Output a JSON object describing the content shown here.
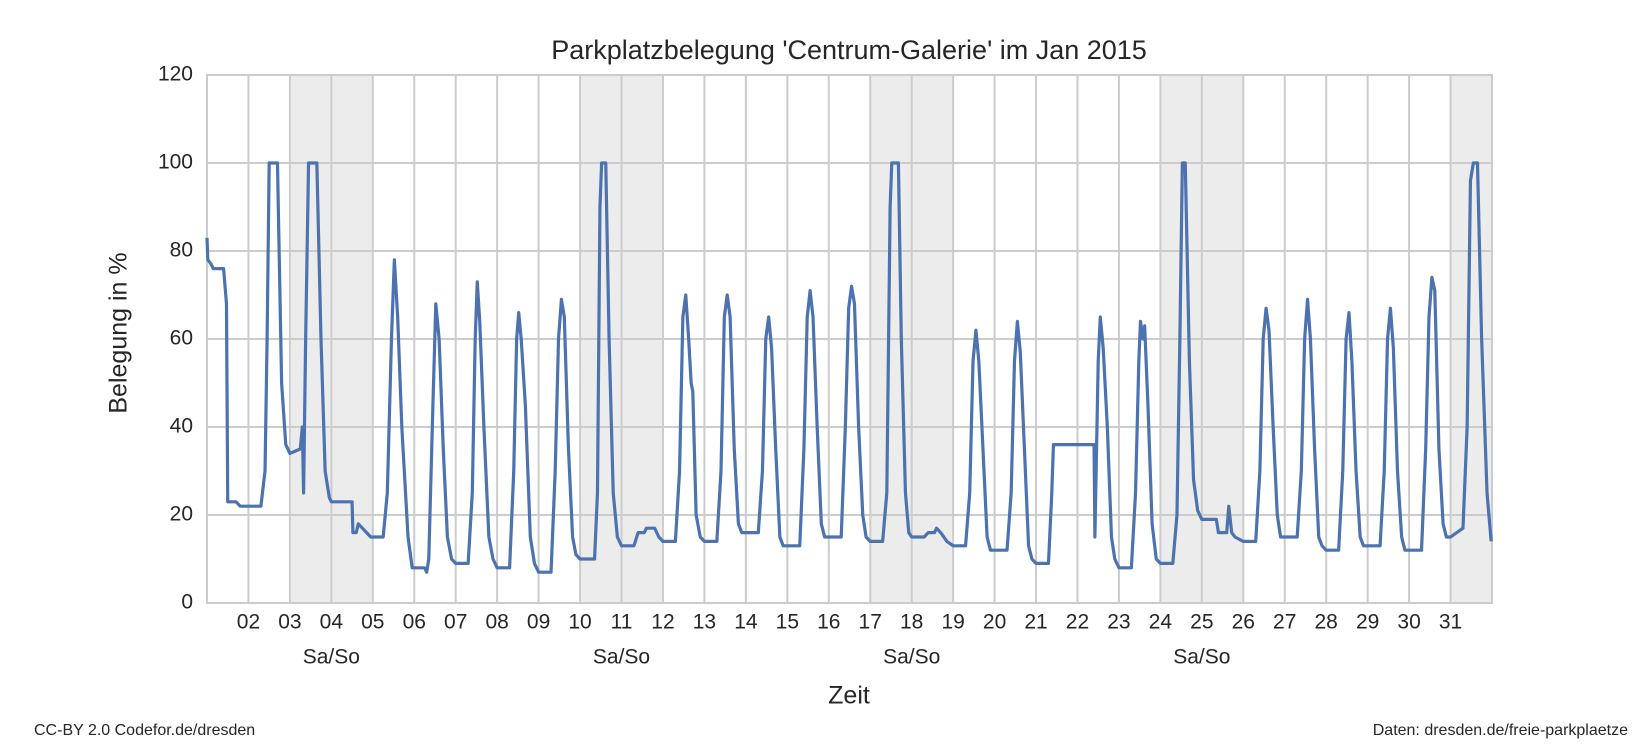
{
  "chart_data": {
    "type": "line",
    "title": "Parkplatzbelegung 'Centrum-Galerie' im Jan 2015",
    "xlabel": "Zeit",
    "ylabel": "Belegung in %",
    "footer_left": "CC-BY 2.0 Codefor.de/dresden",
    "footer_right": "Daten: dresden.de/freie-parkplaetze",
    "color": "#4c72b0",
    "grid": true,
    "xlim": [
      1,
      32
    ],
    "ylim": [
      0,
      120
    ],
    "yticks": [
      0,
      20,
      40,
      60,
      80,
      100,
      120
    ],
    "xticks": [
      {
        "value": 2,
        "label": "02"
      },
      {
        "value": 3,
        "label": "03"
      },
      {
        "value": 4,
        "label": "04"
      },
      {
        "value": 5,
        "label": "05"
      },
      {
        "value": 6,
        "label": "06"
      },
      {
        "value": 7,
        "label": "07"
      },
      {
        "value": 8,
        "label": "08"
      },
      {
        "value": 9,
        "label": "09"
      },
      {
        "value": 10,
        "label": "10"
      },
      {
        "value": 11,
        "label": "11"
      },
      {
        "value": 12,
        "label": "12"
      },
      {
        "value": 13,
        "label": "13"
      },
      {
        "value": 14,
        "label": "14"
      },
      {
        "value": 15,
        "label": "15"
      },
      {
        "value": 16,
        "label": "16"
      },
      {
        "value": 17,
        "label": "17"
      },
      {
        "value": 18,
        "label": "18"
      },
      {
        "value": 19,
        "label": "19"
      },
      {
        "value": 20,
        "label": "20"
      },
      {
        "value": 21,
        "label": "21"
      },
      {
        "value": 22,
        "label": "22"
      },
      {
        "value": 23,
        "label": "23"
      },
      {
        "value": 24,
        "label": "24"
      },
      {
        "value": 25,
        "label": "25"
      },
      {
        "value": 26,
        "label": "26"
      },
      {
        "value": 27,
        "label": "27"
      },
      {
        "value": 28,
        "label": "28"
      },
      {
        "value": 29,
        "label": "29"
      },
      {
        "value": 30,
        "label": "30"
      },
      {
        "value": 31,
        "label": "31"
      }
    ],
    "weekends": [
      {
        "start": 3,
        "end": 5,
        "label": "Sa/So"
      },
      {
        "start": 10,
        "end": 12,
        "label": "Sa/So"
      },
      {
        "start": 17,
        "end": 19,
        "label": "Sa/So"
      },
      {
        "start": 24,
        "end": 26,
        "label": "Sa/So"
      },
      {
        "start": 31,
        "end": 32
      }
    ],
    "x": [
      1.0,
      1.02,
      1.1,
      1.15,
      1.4,
      1.47,
      1.5,
      1.7,
      1.8,
      2.3,
      2.4,
      2.45,
      2.5,
      2.7,
      2.8,
      2.9,
      3.0,
      3.25,
      3.3,
      3.33,
      3.38,
      3.45,
      3.65,
      3.75,
      3.85,
      3.95,
      4.0,
      4.5,
      4.52,
      4.6,
      4.65,
      4.75,
      4.85,
      4.95,
      5.25,
      5.35,
      5.45,
      5.52,
      5.6,
      5.7,
      5.85,
      5.95,
      6.25,
      6.3,
      6.35,
      6.45,
      6.52,
      6.6,
      6.7,
      6.8,
      6.9,
      7.0,
      7.3,
      7.4,
      7.47,
      7.52,
      7.58,
      7.68,
      7.8,
      7.9,
      8.0,
      8.3,
      8.4,
      8.47,
      8.52,
      8.58,
      8.68,
      8.8,
      8.9,
      9.0,
      9.3,
      9.4,
      9.48,
      9.55,
      9.62,
      9.72,
      9.82,
      9.9,
      10.0,
      10.35,
      10.42,
      10.48,
      10.52,
      10.62,
      10.7,
      10.8,
      10.9,
      11.0,
      11.3,
      11.4,
      11.55,
      11.6,
      11.8,
      11.9,
      12.0,
      12.3,
      12.4,
      12.48,
      12.55,
      12.62,
      12.68,
      12.72,
      12.8,
      12.9,
      13.0,
      13.3,
      13.4,
      13.48,
      13.55,
      13.62,
      13.72,
      13.82,
      13.9,
      14.0,
      14.3,
      14.4,
      14.48,
      14.55,
      14.62,
      14.72,
      14.82,
      14.9,
      15.0,
      15.3,
      15.4,
      15.48,
      15.55,
      15.62,
      15.72,
      15.82,
      15.9,
      16.0,
      16.3,
      16.4,
      16.48,
      16.55,
      16.62,
      16.72,
      16.82,
      16.9,
      17.0,
      17.3,
      17.4,
      17.48,
      17.52,
      17.68,
      17.75,
      17.85,
      17.93,
      18.0,
      18.3,
      18.4,
      18.55,
      18.6,
      18.7,
      18.85,
      19.0,
      19.3,
      19.4,
      19.48,
      19.55,
      19.62,
      19.72,
      19.82,
      19.9,
      20.0,
      20.3,
      20.4,
      20.48,
      20.55,
      20.62,
      20.72,
      20.82,
      20.9,
      21.0,
      21.3,
      21.38,
      21.42,
      22.4,
      22.42,
      22.45,
      22.5,
      22.55,
      22.62,
      22.72,
      22.82,
      22.9,
      23.0,
      23.3,
      23.4,
      23.48,
      23.52,
      23.58,
      23.62,
      23.7,
      23.8,
      23.9,
      24.0,
      24.3,
      24.4,
      24.47,
      24.53,
      24.6,
      24.7,
      24.8,
      24.9,
      25.0,
      25.35,
      25.4,
      25.6,
      25.65,
      25.72,
      25.8,
      26.0,
      26.3,
      26.4,
      26.48,
      26.55,
      26.62,
      26.72,
      26.82,
      26.9,
      27.0,
      27.3,
      27.4,
      27.48,
      27.55,
      27.62,
      27.72,
      27.82,
      27.9,
      28.0,
      28.3,
      28.4,
      28.48,
      28.55,
      28.62,
      28.72,
      28.82,
      28.9,
      29.0,
      29.3,
      29.4,
      29.48,
      29.55,
      29.62,
      29.72,
      29.82,
      29.9,
      30.0,
      30.3,
      30.4,
      30.48,
      30.55,
      30.62,
      30.72,
      30.82,
      30.9,
      31.0,
      31.3,
      31.4,
      31.48,
      31.55,
      31.65,
      31.75,
      31.88,
      31.98
    ],
    "values": [
      83,
      78,
      77,
      76,
      76,
      68,
      23,
      23,
      22,
      22,
      30,
      60,
      100,
      100,
      50,
      36,
      34,
      35,
      40,
      25,
      60,
      100,
      100,
      60,
      30,
      24,
      23,
      23,
      16,
      16,
      18,
      17,
      16,
      15,
      15,
      25,
      60,
      78,
      65,
      40,
      15,
      8,
      8,
      7,
      10,
      45,
      68,
      60,
      35,
      15,
      10,
      9,
      9,
      25,
      60,
      73,
      64,
      40,
      15,
      10,
      8,
      8,
      30,
      60,
      66,
      60,
      45,
      15,
      9,
      7,
      7,
      30,
      60,
      69,
      65,
      35,
      15,
      11,
      10,
      10,
      25,
      90,
      100,
      100,
      60,
      25,
      15,
      13,
      13,
      16,
      16,
      17,
      17,
      15,
      14,
      14,
      30,
      65,
      70,
      60,
      50,
      48,
      20,
      15,
      14,
      14,
      30,
      65,
      70,
      65,
      35,
      18,
      16,
      16,
      16,
      30,
      60,
      65,
      58,
      35,
      15,
      13,
      13,
      13,
      35,
      65,
      71,
      65,
      40,
      18,
      15,
      15,
      15,
      40,
      67,
      72,
      68,
      40,
      20,
      15,
      14,
      14,
      25,
      90,
      100,
      100,
      60,
      25,
      16,
      15,
      15,
      16,
      16,
      17,
      16,
      14,
      13,
      13,
      25,
      55,
      62,
      55,
      35,
      15,
      12,
      12,
      12,
      25,
      55,
      64,
      57,
      35,
      13,
      10,
      9,
      9,
      25,
      36,
      36,
      15,
      30,
      55,
      65,
      58,
      40,
      15,
      10,
      8,
      8,
      25,
      55,
      64,
      60,
      63,
      45,
      18,
      10,
      9,
      9,
      20,
      60,
      100,
      100,
      55,
      28,
      21,
      19,
      19,
      16,
      16,
      22,
      16,
      15,
      14,
      14,
      30,
      60,
      67,
      62,
      40,
      20,
      15,
      15,
      15,
      30,
      60,
      69,
      60,
      35,
      15,
      13,
      12,
      12,
      30,
      60,
      66,
      55,
      30,
      15,
      13,
      13,
      13,
      30,
      60,
      67,
      58,
      30,
      15,
      12,
      12,
      12,
      35,
      65,
      74,
      71,
      35,
      18,
      15,
      15,
      17,
      40,
      96,
      100,
      100,
      60,
      25,
      14
    ]
  }
}
